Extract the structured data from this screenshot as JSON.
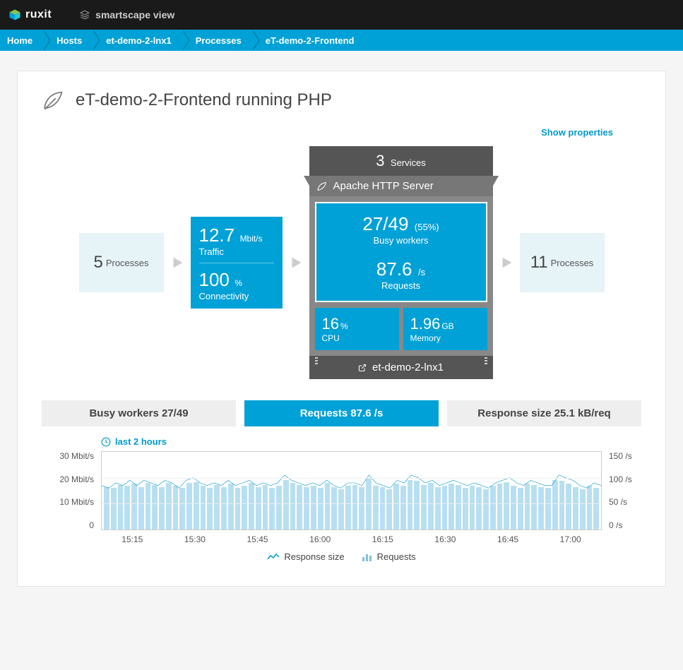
{
  "header": {
    "brand": "ruxit",
    "view_label": "smartscape view"
  },
  "breadcrumb": [
    "Home",
    "Hosts",
    "et-demo-2-lnx1",
    "Processes",
    "eT-demo-2-Frontend"
  ],
  "page": {
    "title": "eT-demo-2-Frontend running PHP",
    "show_properties": "Show properties"
  },
  "smartscape": {
    "left_box": {
      "value": "5",
      "label": "Processes"
    },
    "traffic_box": {
      "rate_value": "12.7",
      "rate_unit": "Mbit/s",
      "rate_label": "Traffic",
      "conn_value": "100",
      "conn_unit": "%",
      "conn_label": "Connectivity"
    },
    "apache": {
      "services_value": "3",
      "services_label": "Services",
      "server_name": "Apache HTTP Server",
      "busy_value": "27/49",
      "busy_pct": "(55%)",
      "busy_label": "Busy workers",
      "req_value": "87.6",
      "req_unit": "/s",
      "req_label": "Requests",
      "cpu_value": "16",
      "cpu_unit": "%",
      "cpu_label": "CPU",
      "mem_value": "1.96",
      "mem_unit": "GB",
      "mem_label": "Memory",
      "host": "et-demo-2-lnx1"
    },
    "right_box": {
      "value": "11",
      "label": "Processes"
    }
  },
  "tabs": [
    {
      "label": "Busy workers 27/49",
      "active": false
    },
    {
      "label": "Requests 87.6 /s",
      "active": true
    },
    {
      "label": "Response size 25.1 kB/req",
      "active": false
    }
  ],
  "chart": {
    "timeframe": "last 2 hours",
    "y_left": {
      "ticks": [
        "30 Mbit/s",
        "20 Mbit/s",
        "10 Mbit/s",
        "0"
      ],
      "max": 30
    },
    "y_right": {
      "ticks": [
        "150 /s",
        "100 /s",
        "50 /s",
        "0 /s"
      ],
      "max": 150
    },
    "x_ticks": [
      "15:15",
      "15:30",
      "15:45",
      "16:00",
      "16:15",
      "16:30",
      "16:45",
      "17:00"
    ],
    "bar_values": [
      82,
      80,
      86,
      84,
      88,
      82,
      90,
      86,
      82,
      90,
      84,
      80,
      90,
      92,
      84,
      80,
      86,
      82,
      88,
      80,
      84,
      90,
      82,
      86,
      80,
      84,
      96,
      90,
      86,
      82,
      84,
      80,
      90,
      82,
      78,
      84,
      86,
      82,
      98,
      84,
      82,
      78,
      88,
      84,
      96,
      94,
      86,
      90,
      82,
      84,
      88,
      86,
      80,
      84,
      82,
      78,
      84,
      88,
      92,
      84,
      80,
      88,
      86,
      82,
      80,
      96,
      94,
      88,
      82,
      78,
      84,
      80
    ],
    "line_values": [
      17,
      16,
      18,
      17,
      19,
      17,
      19,
      18,
      17,
      19,
      18,
      16,
      19,
      20,
      18,
      17,
      18,
      17,
      19,
      17,
      18,
      19,
      17,
      18,
      17,
      18,
      21,
      19,
      18,
      17,
      18,
      17,
      19,
      17,
      16,
      18,
      18,
      17,
      21,
      18,
      17,
      16,
      19,
      18,
      21,
      20,
      18,
      19,
      17,
      18,
      19,
      18,
      17,
      18,
      17,
      16,
      18,
      19,
      20,
      18,
      17,
      19,
      18,
      17,
      17,
      21,
      20,
      19,
      17,
      16,
      18,
      17
    ],
    "legend": {
      "line": "Response size",
      "bars": "Requests"
    },
    "colors": {
      "bars": "#b8dff1",
      "line": "#0099cc",
      "grid": "#eeeeee",
      "border": "#cccccc",
      "bg": "#ffffff"
    }
  }
}
